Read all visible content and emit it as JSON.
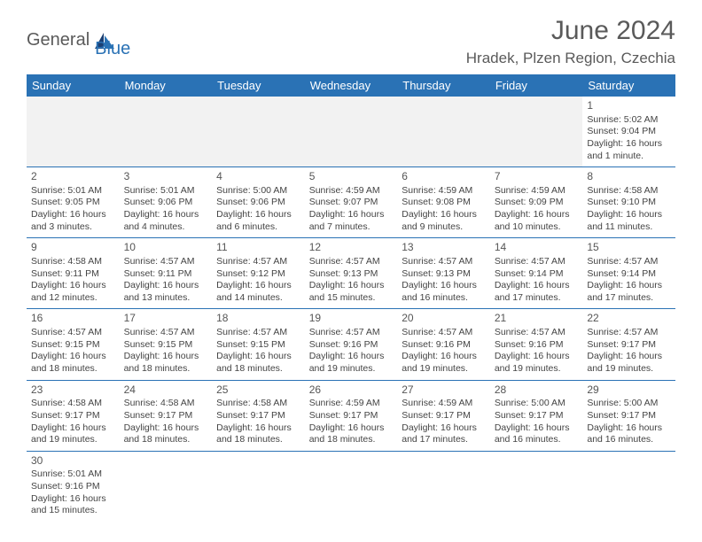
{
  "logo": {
    "part1": "General",
    "part2": "Blue"
  },
  "title": "June 2024",
  "location": "Hradek, Plzen Region, Czechia",
  "colors": {
    "header_bg": "#2a72b5",
    "header_text": "#ffffff",
    "row_border": "#2a72b5",
    "blank_bg": "#f2f2f2",
    "title_color": "#5a5a5a",
    "body_text": "#444444"
  },
  "day_headers": [
    "Sunday",
    "Monday",
    "Tuesday",
    "Wednesday",
    "Thursday",
    "Friday",
    "Saturday"
  ],
  "weeks": [
    [
      null,
      null,
      null,
      null,
      null,
      null,
      {
        "n": "1",
        "sr": "Sunrise: 5:02 AM",
        "ss": "Sunset: 9:04 PM",
        "d1": "Daylight: 16 hours",
        "d2": "and 1 minute."
      }
    ],
    [
      {
        "n": "2",
        "sr": "Sunrise: 5:01 AM",
        "ss": "Sunset: 9:05 PM",
        "d1": "Daylight: 16 hours",
        "d2": "and 3 minutes."
      },
      {
        "n": "3",
        "sr": "Sunrise: 5:01 AM",
        "ss": "Sunset: 9:06 PM",
        "d1": "Daylight: 16 hours",
        "d2": "and 4 minutes."
      },
      {
        "n": "4",
        "sr": "Sunrise: 5:00 AM",
        "ss": "Sunset: 9:06 PM",
        "d1": "Daylight: 16 hours",
        "d2": "and 6 minutes."
      },
      {
        "n": "5",
        "sr": "Sunrise: 4:59 AM",
        "ss": "Sunset: 9:07 PM",
        "d1": "Daylight: 16 hours",
        "d2": "and 7 minutes."
      },
      {
        "n": "6",
        "sr": "Sunrise: 4:59 AM",
        "ss": "Sunset: 9:08 PM",
        "d1": "Daylight: 16 hours",
        "d2": "and 9 minutes."
      },
      {
        "n": "7",
        "sr": "Sunrise: 4:59 AM",
        "ss": "Sunset: 9:09 PM",
        "d1": "Daylight: 16 hours",
        "d2": "and 10 minutes."
      },
      {
        "n": "8",
        "sr": "Sunrise: 4:58 AM",
        "ss": "Sunset: 9:10 PM",
        "d1": "Daylight: 16 hours",
        "d2": "and 11 minutes."
      }
    ],
    [
      {
        "n": "9",
        "sr": "Sunrise: 4:58 AM",
        "ss": "Sunset: 9:11 PM",
        "d1": "Daylight: 16 hours",
        "d2": "and 12 minutes."
      },
      {
        "n": "10",
        "sr": "Sunrise: 4:57 AM",
        "ss": "Sunset: 9:11 PM",
        "d1": "Daylight: 16 hours",
        "d2": "and 13 minutes."
      },
      {
        "n": "11",
        "sr": "Sunrise: 4:57 AM",
        "ss": "Sunset: 9:12 PM",
        "d1": "Daylight: 16 hours",
        "d2": "and 14 minutes."
      },
      {
        "n": "12",
        "sr": "Sunrise: 4:57 AM",
        "ss": "Sunset: 9:13 PM",
        "d1": "Daylight: 16 hours",
        "d2": "and 15 minutes."
      },
      {
        "n": "13",
        "sr": "Sunrise: 4:57 AM",
        "ss": "Sunset: 9:13 PM",
        "d1": "Daylight: 16 hours",
        "d2": "and 16 minutes."
      },
      {
        "n": "14",
        "sr": "Sunrise: 4:57 AM",
        "ss": "Sunset: 9:14 PM",
        "d1": "Daylight: 16 hours",
        "d2": "and 17 minutes."
      },
      {
        "n": "15",
        "sr": "Sunrise: 4:57 AM",
        "ss": "Sunset: 9:14 PM",
        "d1": "Daylight: 16 hours",
        "d2": "and 17 minutes."
      }
    ],
    [
      {
        "n": "16",
        "sr": "Sunrise: 4:57 AM",
        "ss": "Sunset: 9:15 PM",
        "d1": "Daylight: 16 hours",
        "d2": "and 18 minutes."
      },
      {
        "n": "17",
        "sr": "Sunrise: 4:57 AM",
        "ss": "Sunset: 9:15 PM",
        "d1": "Daylight: 16 hours",
        "d2": "and 18 minutes."
      },
      {
        "n": "18",
        "sr": "Sunrise: 4:57 AM",
        "ss": "Sunset: 9:15 PM",
        "d1": "Daylight: 16 hours",
        "d2": "and 18 minutes."
      },
      {
        "n": "19",
        "sr": "Sunrise: 4:57 AM",
        "ss": "Sunset: 9:16 PM",
        "d1": "Daylight: 16 hours",
        "d2": "and 19 minutes."
      },
      {
        "n": "20",
        "sr": "Sunrise: 4:57 AM",
        "ss": "Sunset: 9:16 PM",
        "d1": "Daylight: 16 hours",
        "d2": "and 19 minutes."
      },
      {
        "n": "21",
        "sr": "Sunrise: 4:57 AM",
        "ss": "Sunset: 9:16 PM",
        "d1": "Daylight: 16 hours",
        "d2": "and 19 minutes."
      },
      {
        "n": "22",
        "sr": "Sunrise: 4:57 AM",
        "ss": "Sunset: 9:17 PM",
        "d1": "Daylight: 16 hours",
        "d2": "and 19 minutes."
      }
    ],
    [
      {
        "n": "23",
        "sr": "Sunrise: 4:58 AM",
        "ss": "Sunset: 9:17 PM",
        "d1": "Daylight: 16 hours",
        "d2": "and 19 minutes."
      },
      {
        "n": "24",
        "sr": "Sunrise: 4:58 AM",
        "ss": "Sunset: 9:17 PM",
        "d1": "Daylight: 16 hours",
        "d2": "and 18 minutes."
      },
      {
        "n": "25",
        "sr": "Sunrise: 4:58 AM",
        "ss": "Sunset: 9:17 PM",
        "d1": "Daylight: 16 hours",
        "d2": "and 18 minutes."
      },
      {
        "n": "26",
        "sr": "Sunrise: 4:59 AM",
        "ss": "Sunset: 9:17 PM",
        "d1": "Daylight: 16 hours",
        "d2": "and 18 minutes."
      },
      {
        "n": "27",
        "sr": "Sunrise: 4:59 AM",
        "ss": "Sunset: 9:17 PM",
        "d1": "Daylight: 16 hours",
        "d2": "and 17 minutes."
      },
      {
        "n": "28",
        "sr": "Sunrise: 5:00 AM",
        "ss": "Sunset: 9:17 PM",
        "d1": "Daylight: 16 hours",
        "d2": "and 16 minutes."
      },
      {
        "n": "29",
        "sr": "Sunrise: 5:00 AM",
        "ss": "Sunset: 9:17 PM",
        "d1": "Daylight: 16 hours",
        "d2": "and 16 minutes."
      }
    ],
    [
      {
        "n": "30",
        "sr": "Sunrise: 5:01 AM",
        "ss": "Sunset: 9:16 PM",
        "d1": "Daylight: 16 hours",
        "d2": "and 15 minutes."
      },
      null,
      null,
      null,
      null,
      null,
      null
    ]
  ]
}
